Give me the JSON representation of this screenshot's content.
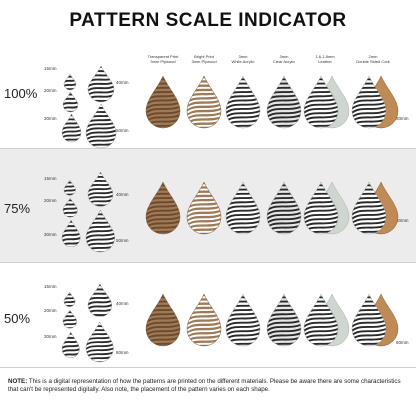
{
  "title": "PATTERN SCALE INDICATOR",
  "materials": [
    {
      "line1": "Transparent Print",
      "line2": "3mm Plywood"
    },
    {
      "line1": "Bright Print",
      "line2": "3mm Plywood"
    },
    {
      "line1": "3mm",
      "line2": "White Acrylic"
    },
    {
      "line1": "3mm",
      "line2": "Clear Acrylic"
    },
    {
      "line1": "1.6-1.8mm",
      "line2": "Leather"
    },
    {
      "line1": "2mm",
      "line2": "Double Sided Cork"
    }
  ],
  "scales": [
    {
      "percent": "100%",
      "sizes": [
        "15mm",
        "20mm",
        "30mm",
        "40mm",
        "50mm",
        "60mm"
      ]
    },
    {
      "percent": "75%",
      "sizes": [
        "15mm",
        "20mm",
        "30mm",
        "40mm",
        "50mm",
        "60mm"
      ]
    },
    {
      "percent": "50%",
      "sizes": [
        "15mm",
        "20mm",
        "30mm",
        "40mm",
        "50mm",
        "60mm"
      ]
    }
  ],
  "note": {
    "label": "NOTE:",
    "text": " This is a digital representation of how the patterns are printed on the different materials. Please be aware there are some characteristics that can't be represented digitally. Also note, the placement of the pattern varies on each shape."
  },
  "colors": {
    "plywood": "#a07a55",
    "plywood_dark": "#6b4a2e",
    "stripe_dark": "#2a2a2a",
    "white": "#ffffff",
    "clear_acrylic_bg": "#e6e6e6",
    "leather": "#cfd6cf",
    "cork": "#c08a55",
    "band_grey": "#ececec"
  }
}
